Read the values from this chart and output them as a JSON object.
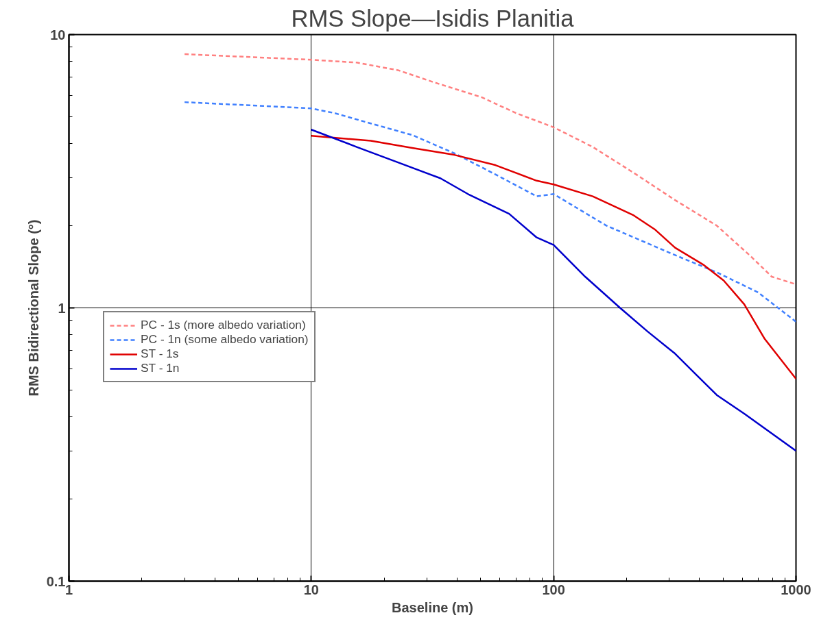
{
  "chart_data": {
    "type": "line",
    "title": "RMS Slope—Isidis Planitia",
    "xlabel": "Baseline (m)",
    "ylabel": "RMS Bidirectional Slope (°)",
    "log": "xy",
    "xlim": [
      1,
      1000
    ],
    "ylim": [
      0.1,
      10
    ],
    "xticks": [
      1,
      10,
      100,
      1000
    ],
    "yticks": [
      0.1,
      1,
      10
    ],
    "grid": true,
    "legend": "left",
    "series": [
      {
        "name": "PC - 1s (more albedo variation)",
        "color": "#ff8080",
        "line_style": "dashed",
        "x": [
          3,
          10,
          15.4,
          22.9,
          31.9,
          50.4,
          70,
          100,
          145,
          214,
          317,
          471,
          653,
          795,
          1000
        ],
        "values": [
          8.48,
          8.09,
          7.9,
          7.4,
          6.7,
          5.9,
          5.16,
          4.58,
          3.88,
          3.12,
          2.48,
          2.0,
          1.54,
          1.3,
          1.22
        ]
      },
      {
        "name": "PC - 1n (some albedo variation)",
        "color": "#4080ff",
        "line_style": "dashed",
        "x": [
          3,
          10,
          12.5,
          17.6,
          26.1,
          38.9,
          57.5,
          85.1,
          100,
          165,
          317,
          471,
          697,
          1000
        ],
        "values": [
          5.66,
          5.37,
          5.16,
          4.73,
          4.29,
          3.68,
          3.08,
          2.56,
          2.61,
          2.0,
          1.56,
          1.35,
          1.14,
          0.89
        ]
      },
      {
        "name": "ST - 1s",
        "color": "#e00000",
        "line_style": "solid",
        "x": [
          10,
          17.6,
          26.1,
          38.9,
          57.5,
          85.1,
          100,
          145,
          214,
          261,
          317,
          414,
          503,
          612,
          743,
          1000
        ],
        "values": [
          4.26,
          4.09,
          3.85,
          3.63,
          3.33,
          2.92,
          2.83,
          2.56,
          2.18,
          1.94,
          1.66,
          1.44,
          1.26,
          1.03,
          0.77,
          0.55
        ]
      },
      {
        "name": "ST - 1n",
        "color": "#0000cc",
        "line_style": "solid",
        "x": [
          10,
          15.4,
          22.9,
          34.1,
          44.3,
          65.5,
          85.1,
          100,
          135,
          188,
          244,
          317,
          471,
          612,
          1000
        ],
        "values": [
          4.49,
          3.88,
          3.4,
          2.98,
          2.61,
          2.21,
          1.81,
          1.7,
          1.3,
          1.0,
          0.82,
          0.68,
          0.48,
          0.41,
          0.3
        ]
      }
    ]
  }
}
